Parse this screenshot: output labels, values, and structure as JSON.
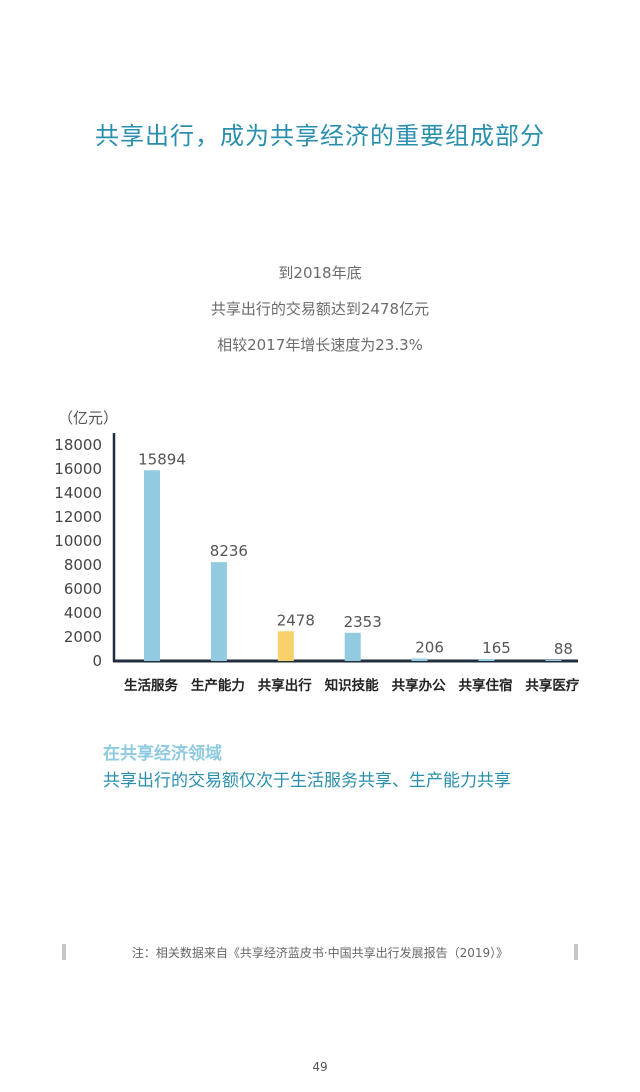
{
  "title": "共享出行，成为共享经济的重要组成部分",
  "intro": {
    "line1": "到2018年底",
    "line2": "共享出行的交易额达到2478亿元",
    "line3": "相较2017年增长速度为23.3%"
  },
  "unit_label": "（亿元）",
  "chart_data": {
    "type": "bar",
    "categories": [
      "生活服务",
      "生产能力",
      "共享出行",
      "知识技能",
      "共享办公",
      "共享住宿",
      "共享医疗"
    ],
    "values": [
      15894,
      8236,
      2478,
      2353,
      206,
      165,
      88
    ],
    "ylim": [
      0,
      18000
    ],
    "yticks": [
      "0",
      "2000",
      "4000",
      "6000",
      "8000",
      "10000",
      "12000",
      "14000",
      "16000",
      "18000"
    ],
    "ylabel": "（亿元）",
    "bar_color": "#92cbe0",
    "highlight_color": "#f9d16a",
    "highlight_index": 2,
    "grid": false
  },
  "highlight": {
    "line1": "在共享经济领域",
    "line2": "共享出行的交易额仅次于生活服务共享、生产能力共享"
  },
  "note": "注：相关数据来自《共享经济蓝皮书·中国共享出行发展报告（2019）》",
  "page_number": "49"
}
